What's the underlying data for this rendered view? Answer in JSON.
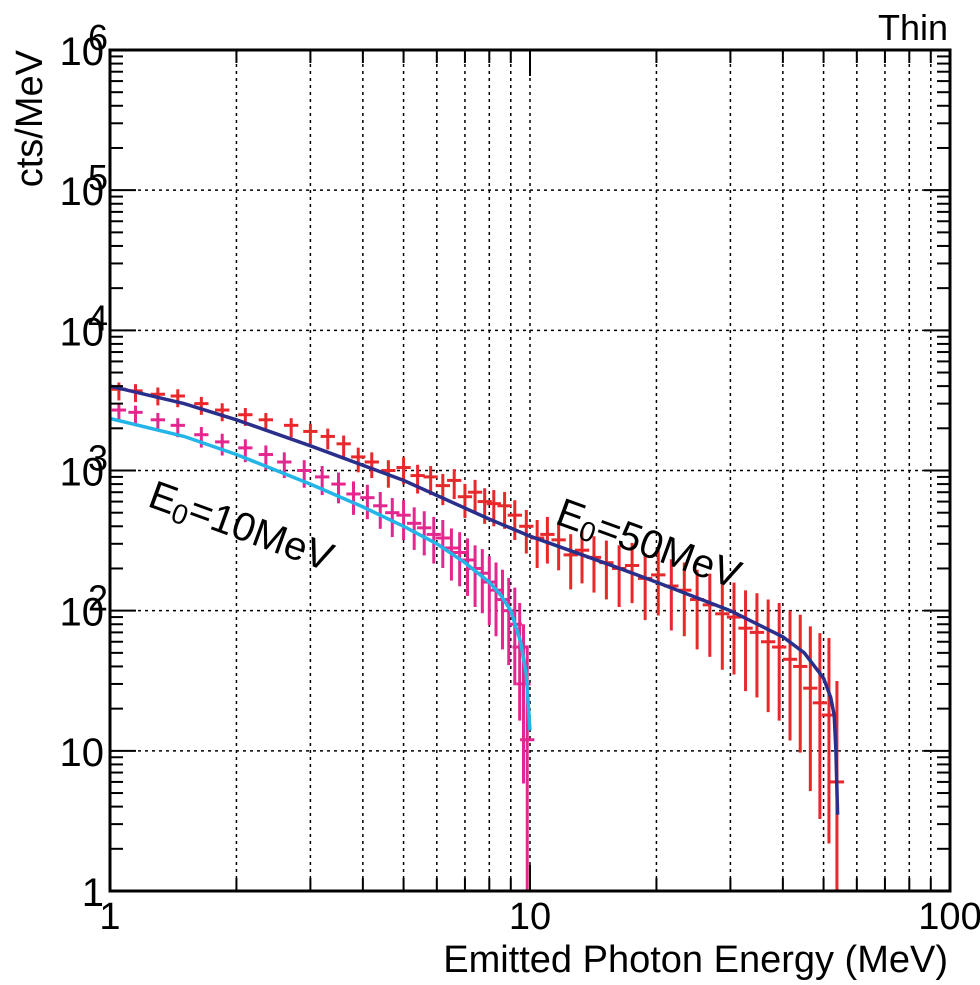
{
  "chart_data": {
    "type": "scatter",
    "title": "Thin",
    "xlabel": "Emitted Photon Energy (MeV)",
    "ylabel": "cts/MeV",
    "xscale": "log",
    "yscale": "log",
    "xlim": [
      1,
      100
    ],
    "ylim": [
      1,
      1000000
    ],
    "grid": true,
    "x_ticks": [
      {
        "value": 1,
        "label": "1"
      },
      {
        "value": 10,
        "label": "10"
      },
      {
        "value": 100,
        "label": "100"
      }
    ],
    "y_ticks": [
      {
        "value": 1,
        "label": "1"
      },
      {
        "value": 10,
        "label": "10"
      },
      {
        "value": 100,
        "label": "10",
        "exp": "2"
      },
      {
        "value": 1000,
        "label": "10",
        "exp": "3"
      },
      {
        "value": 10000,
        "label": "10",
        "exp": "4"
      },
      {
        "value": 100000,
        "label": "10",
        "exp": "5"
      },
      {
        "value": 1000000,
        "label": "10",
        "exp": "6"
      }
    ],
    "annotations": [
      {
        "text": "E",
        "sub": "0",
        "rest": "=10MeV",
        "x": 1.22,
        "y": 560,
        "angle": 20
      },
      {
        "text": "E",
        "sub": "0",
        "rest": "=50MeV",
        "x": 11.4,
        "y": 420,
        "angle": 20
      }
    ],
    "series": [
      {
        "kind": "data",
        "color": "#e8282a",
        "points": [
          [
            1.05,
            3800
          ],
          [
            1.15,
            3700
          ],
          [
            1.3,
            3500
          ],
          [
            1.45,
            3400
          ],
          [
            1.65,
            3000
          ],
          [
            1.85,
            2700
          ],
          [
            2.1,
            2500
          ],
          [
            2.35,
            2300
          ],
          [
            2.7,
            2100
          ],
          [
            3.0,
            1900
          ],
          [
            3.3,
            1750
          ],
          [
            3.6,
            1550
          ],
          [
            3.9,
            1250
          ],
          [
            4.2,
            1150
          ],
          [
            4.6,
            1000
          ],
          [
            5.0,
            1050
          ],
          [
            5.4,
            920
          ],
          [
            5.8,
            900
          ],
          [
            6.2,
            780
          ],
          [
            6.6,
            850
          ],
          [
            7.0,
            650
          ],
          [
            7.4,
            700
          ],
          [
            7.8,
            600
          ],
          [
            8.2,
            580
          ],
          [
            8.7,
            560
          ],
          [
            9.2,
            480
          ],
          [
            9.8,
            400
          ],
          [
            10.4,
            330
          ],
          [
            11.0,
            350
          ],
          [
            11.7,
            320
          ],
          [
            12.5,
            250
          ],
          [
            13.3,
            270
          ],
          [
            14.2,
            240
          ],
          [
            15.2,
            220
          ],
          [
            16.3,
            200
          ],
          [
            17.5,
            210
          ],
          [
            18.8,
            170
          ],
          [
            20.2,
            180
          ],
          [
            21.7,
            150
          ],
          [
            23.3,
            140
          ],
          [
            25.0,
            120
          ],
          [
            26.8,
            110
          ],
          [
            28.7,
            95
          ],
          [
            30.6,
            90
          ],
          [
            32.6,
            75
          ],
          [
            34.7,
            70
          ],
          [
            36.9,
            60
          ],
          [
            39.2,
            55
          ],
          [
            41.6,
            45
          ],
          [
            44.0,
            40
          ],
          [
            46.5,
            28
          ],
          [
            49.0,
            22
          ],
          [
            51.5,
            18
          ],
          [
            53.8,
            6
          ]
        ]
      },
      {
        "kind": "data",
        "color": "#e3278f",
        "points": [
          [
            1.05,
            2700
          ],
          [
            1.15,
            2600
          ],
          [
            1.3,
            2300
          ],
          [
            1.45,
            2100
          ],
          [
            1.65,
            1800
          ],
          [
            1.85,
            1600
          ],
          [
            2.1,
            1450
          ],
          [
            2.35,
            1300
          ],
          [
            2.6,
            1150
          ],
          [
            2.9,
            1000
          ],
          [
            3.2,
            900
          ],
          [
            3.5,
            800
          ],
          [
            3.8,
            680
          ],
          [
            4.1,
            640
          ],
          [
            4.4,
            560
          ],
          [
            4.7,
            500
          ],
          [
            5.0,
            480
          ],
          [
            5.3,
            420
          ],
          [
            5.6,
            390
          ],
          [
            5.9,
            350
          ],
          [
            6.2,
            330
          ],
          [
            6.5,
            280
          ],
          [
            6.8,
            260
          ],
          [
            7.1,
            230
          ],
          [
            7.4,
            200
          ],
          [
            7.7,
            185
          ],
          [
            8.0,
            160
          ],
          [
            8.3,
            140
          ],
          [
            8.6,
            120
          ],
          [
            8.9,
            100
          ],
          [
            9.2,
            80
          ],
          [
            9.45,
            55
          ],
          [
            9.65,
            30
          ],
          [
            9.85,
            12
          ]
        ]
      },
      {
        "kind": "fit",
        "name": "",
        "color": "#2a2f8c",
        "x": [
          1,
          1.5,
          2,
          3,
          5,
          8,
          10,
          15,
          20,
          30,
          40,
          45,
          50,
          52,
          53,
          53.5,
          54
        ],
        "y": [
          4000,
          3000,
          2300,
          1500,
          850,
          450,
          340,
          220,
          160,
          100,
          65,
          50,
          33,
          24,
          18,
          10,
          3.5
        ]
      },
      {
        "kind": "fit",
        "name": "",
        "color": "#23b4e8",
        "x": [
          1,
          1.5,
          2,
          3,
          4,
          5,
          6,
          7,
          8,
          8.5,
          9,
          9.5,
          9.8,
          10
        ],
        "y": [
          2350,
          1750,
          1300,
          800,
          550,
          400,
          300,
          220,
          160,
          130,
          100,
          60,
          35,
          14
        ]
      }
    ]
  }
}
